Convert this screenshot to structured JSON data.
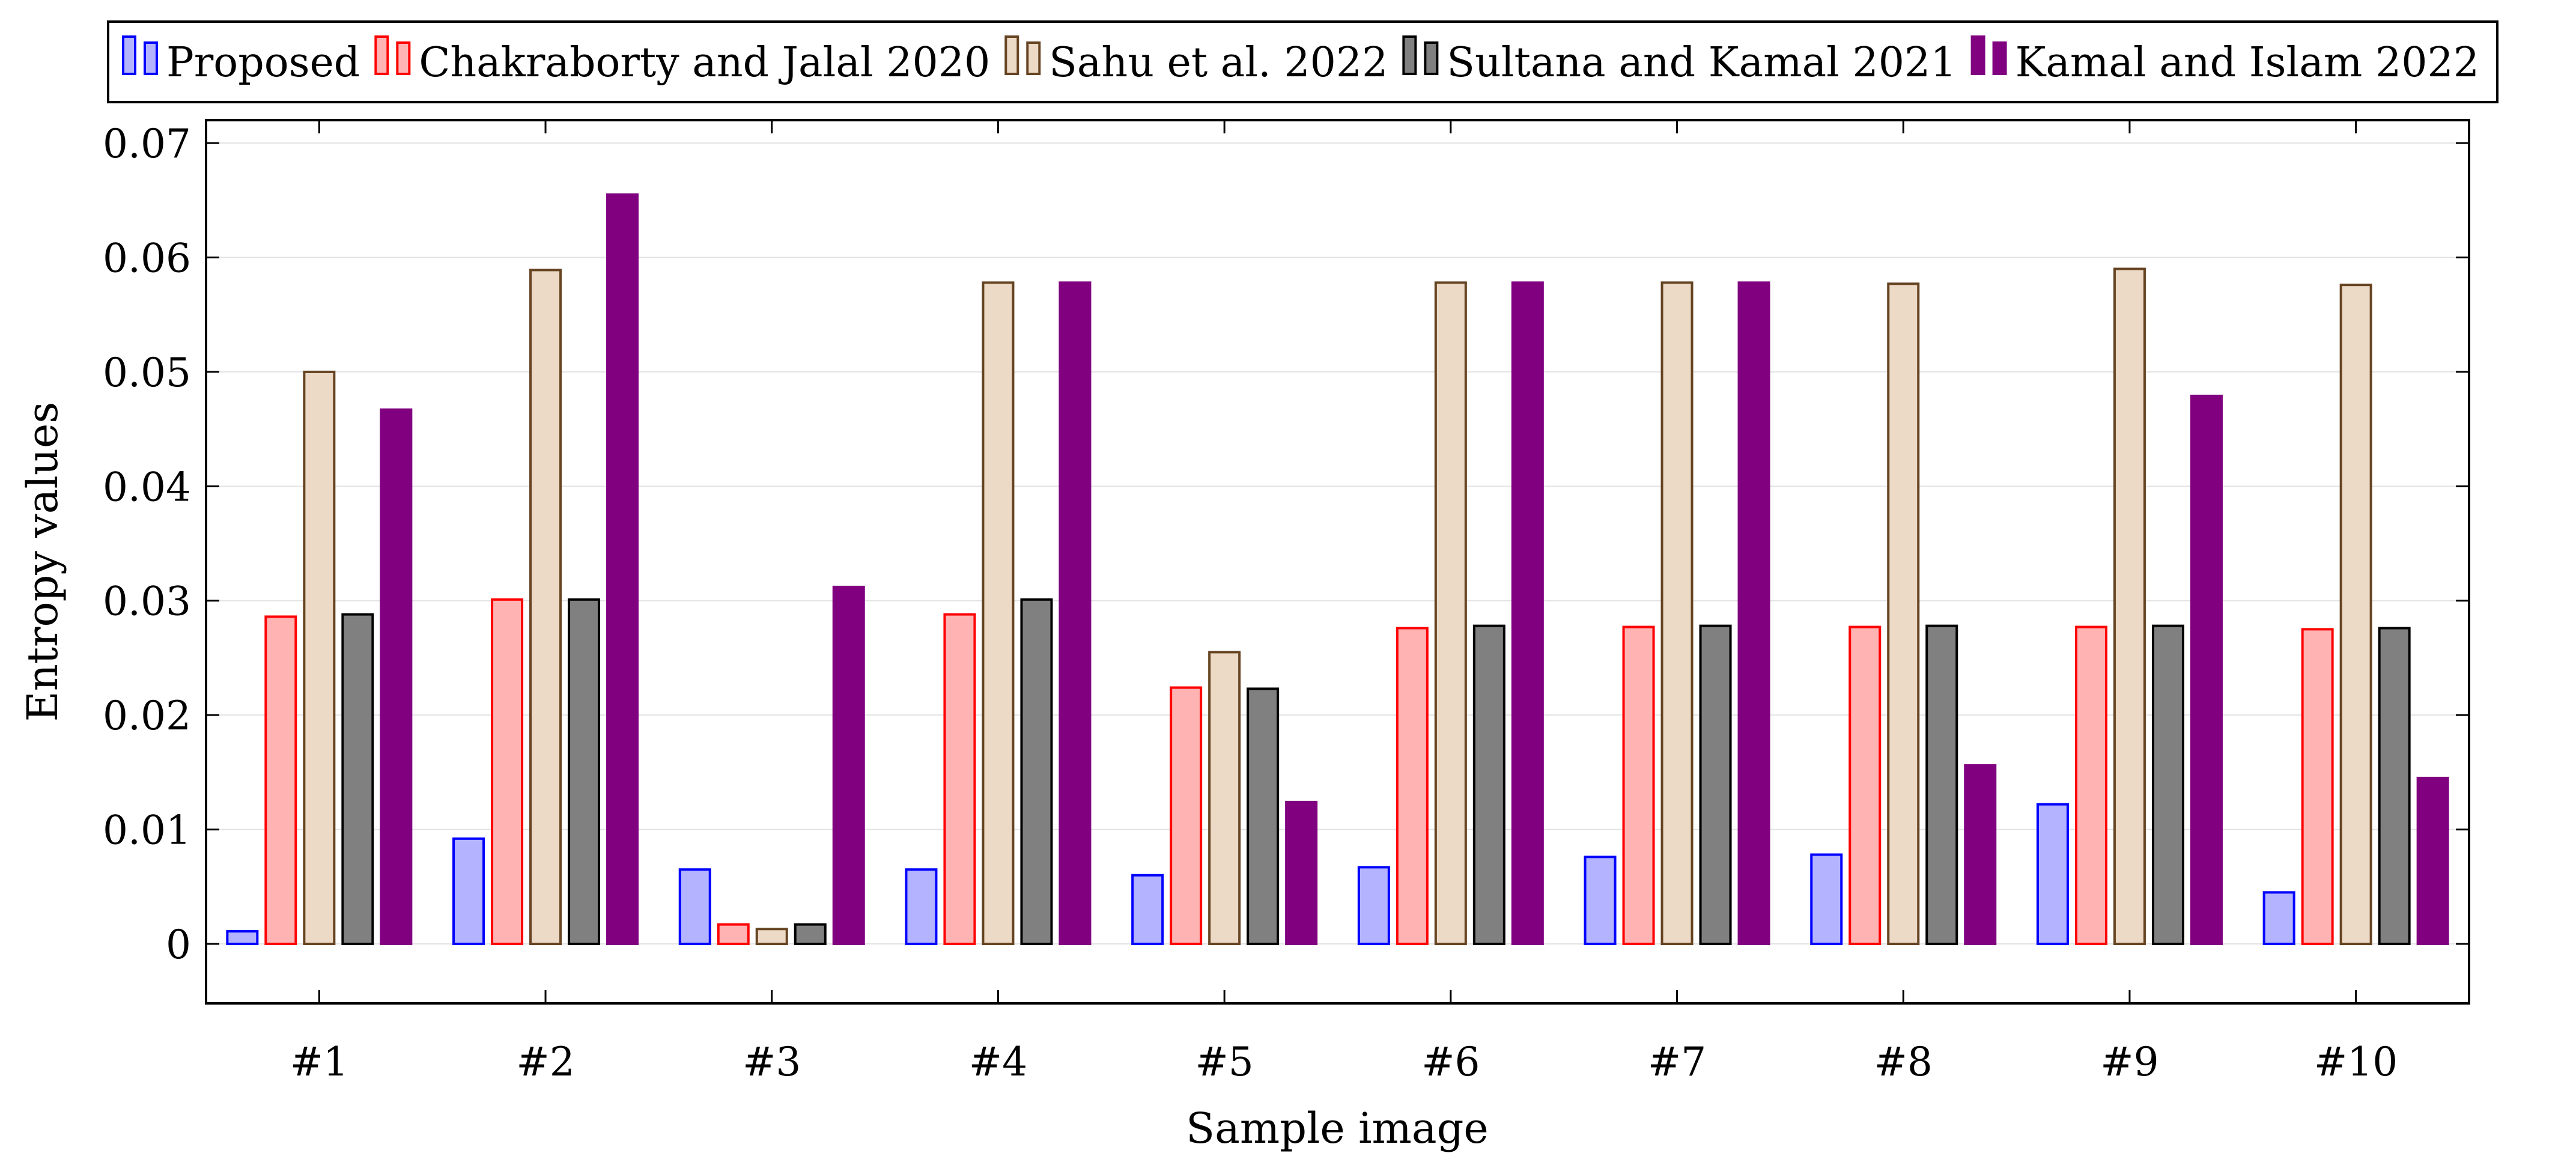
{
  "chart_data": {
    "type": "bar",
    "xlabel": "Sample image",
    "ylabel": "Entropy values",
    "ylim": [
      -0.0052,
      0.072
    ],
    "yticks": [
      0,
      0.01,
      0.02,
      0.03,
      0.04,
      0.05,
      0.06,
      0.07
    ],
    "ytick_labels": [
      "0",
      "0.01",
      "0.02",
      "0.03",
      "0.04",
      "0.05",
      "0.06",
      "0.07"
    ],
    "categories": [
      "#1",
      "#2",
      "#3",
      "#4",
      "#5",
      "#6",
      "#7",
      "#8",
      "#9",
      "#10"
    ],
    "legend_position": "top-center",
    "series": [
      {
        "name": "Proposed",
        "fill": "#b3b3ff",
        "stroke": "#0000ff",
        "values": [
          0.0011,
          0.0092,
          0.0065,
          0.0065,
          0.006,
          0.0067,
          0.0076,
          0.0078,
          0.0122,
          0.0045
        ]
      },
      {
        "name": "Chakraborty and Jalal 2020",
        "fill": "#ffb3b3",
        "stroke": "#ff0000",
        "values": [
          0.0286,
          0.0301,
          0.0017,
          0.0288,
          0.0224,
          0.0276,
          0.0277,
          0.0277,
          0.0277,
          0.0275
        ]
      },
      {
        "name": "Sahu et al. 2022",
        "fill": "#ecd9c6",
        "stroke": "#664422",
        "values": [
          0.05,
          0.0589,
          0.0013,
          0.0578,
          0.0255,
          0.0578,
          0.0578,
          0.0577,
          0.059,
          0.0576
        ]
      },
      {
        "name": "Sultana and Kamal 2021",
        "fill": "#808080",
        "stroke": "#000000",
        "values": [
          0.0288,
          0.0301,
          0.0017,
          0.0301,
          0.0223,
          0.0278,
          0.0278,
          0.0278,
          0.0278,
          0.0276
        ]
      },
      {
        "name": "Kamal and Islam 2022",
        "fill": "#800080",
        "stroke": "#800080",
        "values": [
          0.0467,
          0.0655,
          0.0312,
          0.0578,
          0.0124,
          0.0578,
          0.0578,
          0.0156,
          0.0479,
          0.0145
        ]
      }
    ]
  }
}
